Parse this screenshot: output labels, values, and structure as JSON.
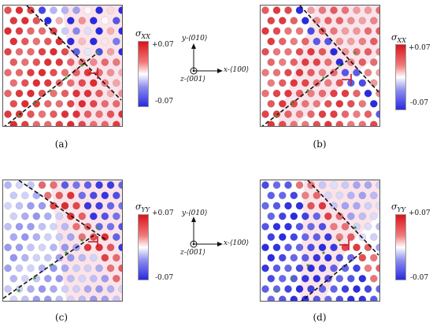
{
  "figure": {
    "panels": [
      {
        "label": "(a)",
        "colorbar_title": "σ_XX",
        "component": "XX",
        "dislocation_label": "⊢"
      },
      {
        "label": "(b)",
        "colorbar_title": "σ_XX",
        "component": "XX",
        "dislocation_label": "⊢"
      },
      {
        "label": "(c)",
        "colorbar_title": "σ_YY",
        "component": "YY",
        "dislocation_label": "⊢"
      },
      {
        "label": "(d)",
        "colorbar_title": "σ_YY",
        "component": "YY",
        "dislocation_label": "⊢"
      }
    ],
    "colorbar": {
      "max_label": "+0.07",
      "min_label": "-0.07",
      "colors": {
        "max": "#d9141b",
        "mid": "#ffffff",
        "min": "#2a2ae0"
      }
    },
    "axes": {
      "y_label": "y-⟨010⟩",
      "x_label": "x-⟨100⟩",
      "z_label": "z-⟨001⟩"
    }
  }
}
